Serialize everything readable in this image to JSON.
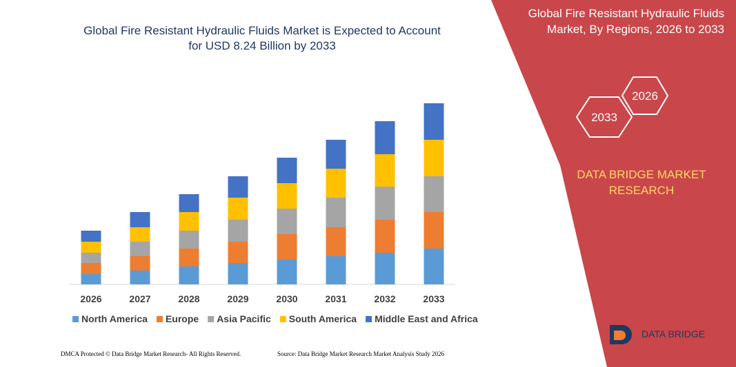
{
  "chart_data": {
    "type": "stacked-bar",
    "title": "Global Fire Resistant Hydraulic Fluids Market is Expected to Account for USD 8.24 Billion by 2033",
    "categories": [
      "2026",
      "2027",
      "2028",
      "2029",
      "2030",
      "2031",
      "2032",
      "2033"
    ],
    "series": [
      {
        "name": "North America",
        "color": "#5b9bd5",
        "values": [
          15,
          20,
          26,
          31,
          36,
          41,
          46,
          52
        ]
      },
      {
        "name": "Europe",
        "color": "#ed7d31",
        "values": [
          16,
          21,
          26,
          31,
          37,
          42,
          48,
          53
        ]
      },
      {
        "name": "Asia Pacific",
        "color": "#a5a5a5",
        "values": [
          15,
          21,
          26,
          32,
          37,
          43,
          48,
          52
        ]
      },
      {
        "name": "South America",
        "color": "#ffc000",
        "values": [
          16,
          21,
          27,
          32,
          37,
          42,
          47,
          53
        ]
      },
      {
        "name": "Middle East and Africa",
        "color": "#4472c4",
        "values": [
          16,
          22,
          26,
          31,
          37,
          42,
          48,
          53
        ]
      }
    ]
  },
  "panel": {
    "title": "Global Fire Resistant Hydraulic Fluids Market, By Regions, 2026 to 2033",
    "hex_left": "2033",
    "hex_right": "2026",
    "brand": "DATA BRIDGE MARKET RESEARCH",
    "logo": "DATA BRIDGE"
  },
  "footer": {
    "left": "DMCA Protected © Data Bridge Market Research- All Rights Reserved.",
    "right": "Source: Data Bridge Market Research Market Analysis Study 2026"
  }
}
